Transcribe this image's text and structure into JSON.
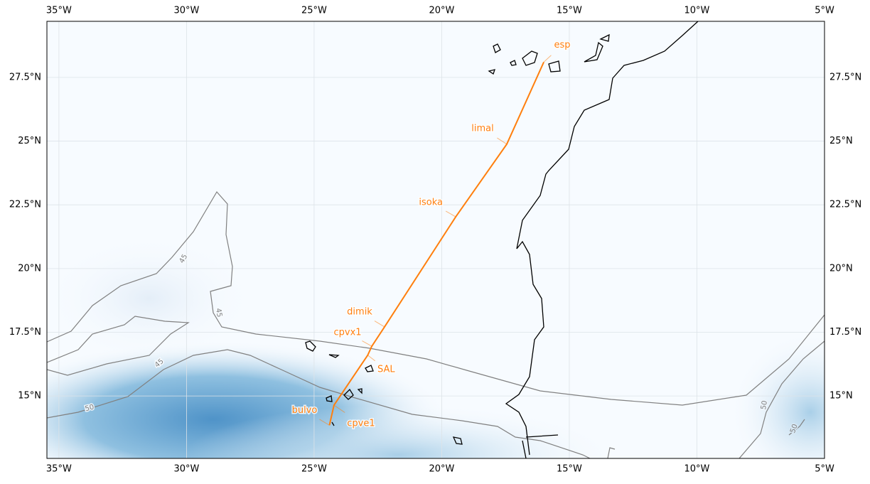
{
  "map": {
    "xlim": [
      -35.47,
      -5
    ],
    "ylim": [
      12.55,
      29.7
    ],
    "xticks": [
      {
        "value": -35,
        "label": "35°W"
      },
      {
        "value": -30,
        "label": "30°W"
      },
      {
        "value": -25,
        "label": "25°W"
      },
      {
        "value": -20,
        "label": "20°W"
      },
      {
        "value": -15,
        "label": "15°W"
      },
      {
        "value": -10,
        "label": "10°W"
      },
      {
        "value": -5,
        "label": "5°W"
      }
    ],
    "yticks": [
      {
        "value": 15,
        "label": "15°N"
      },
      {
        "value": 17.5,
        "label": "17.5°N"
      },
      {
        "value": 20,
        "label": "20°N"
      },
      {
        "value": 22.5,
        "label": "22.5°N"
      },
      {
        "value": 25,
        "label": "25°N"
      },
      {
        "value": 27.5,
        "label": "27.5°N"
      }
    ],
    "grid": true,
    "route": {
      "color": "#ff7f0e",
      "waypoints": [
        {
          "name": "bulvo",
          "lon": -24.4,
          "lat": 13.85
        },
        {
          "name": "cpve1",
          "lon": -24.22,
          "lat": 14.64
        },
        {
          "name": "SAL",
          "lon": -22.9,
          "lat": 16.6
        },
        {
          "name": "cpvx1",
          "lon": -22.74,
          "lat": 16.95
        },
        {
          "name": "dimik",
          "lon": -22.24,
          "lat": 17.71
        },
        {
          "name": "isoka",
          "lon": -19.45,
          "lat": 22.03
        },
        {
          "name": "limal",
          "lon": -17.45,
          "lat": 24.88
        },
        {
          "name": "esp",
          "lon": -16.0,
          "lat": 28.1
        }
      ]
    },
    "contour_labels": [
      45,
      45,
      45,
      50,
      50,
      50
    ]
  }
}
